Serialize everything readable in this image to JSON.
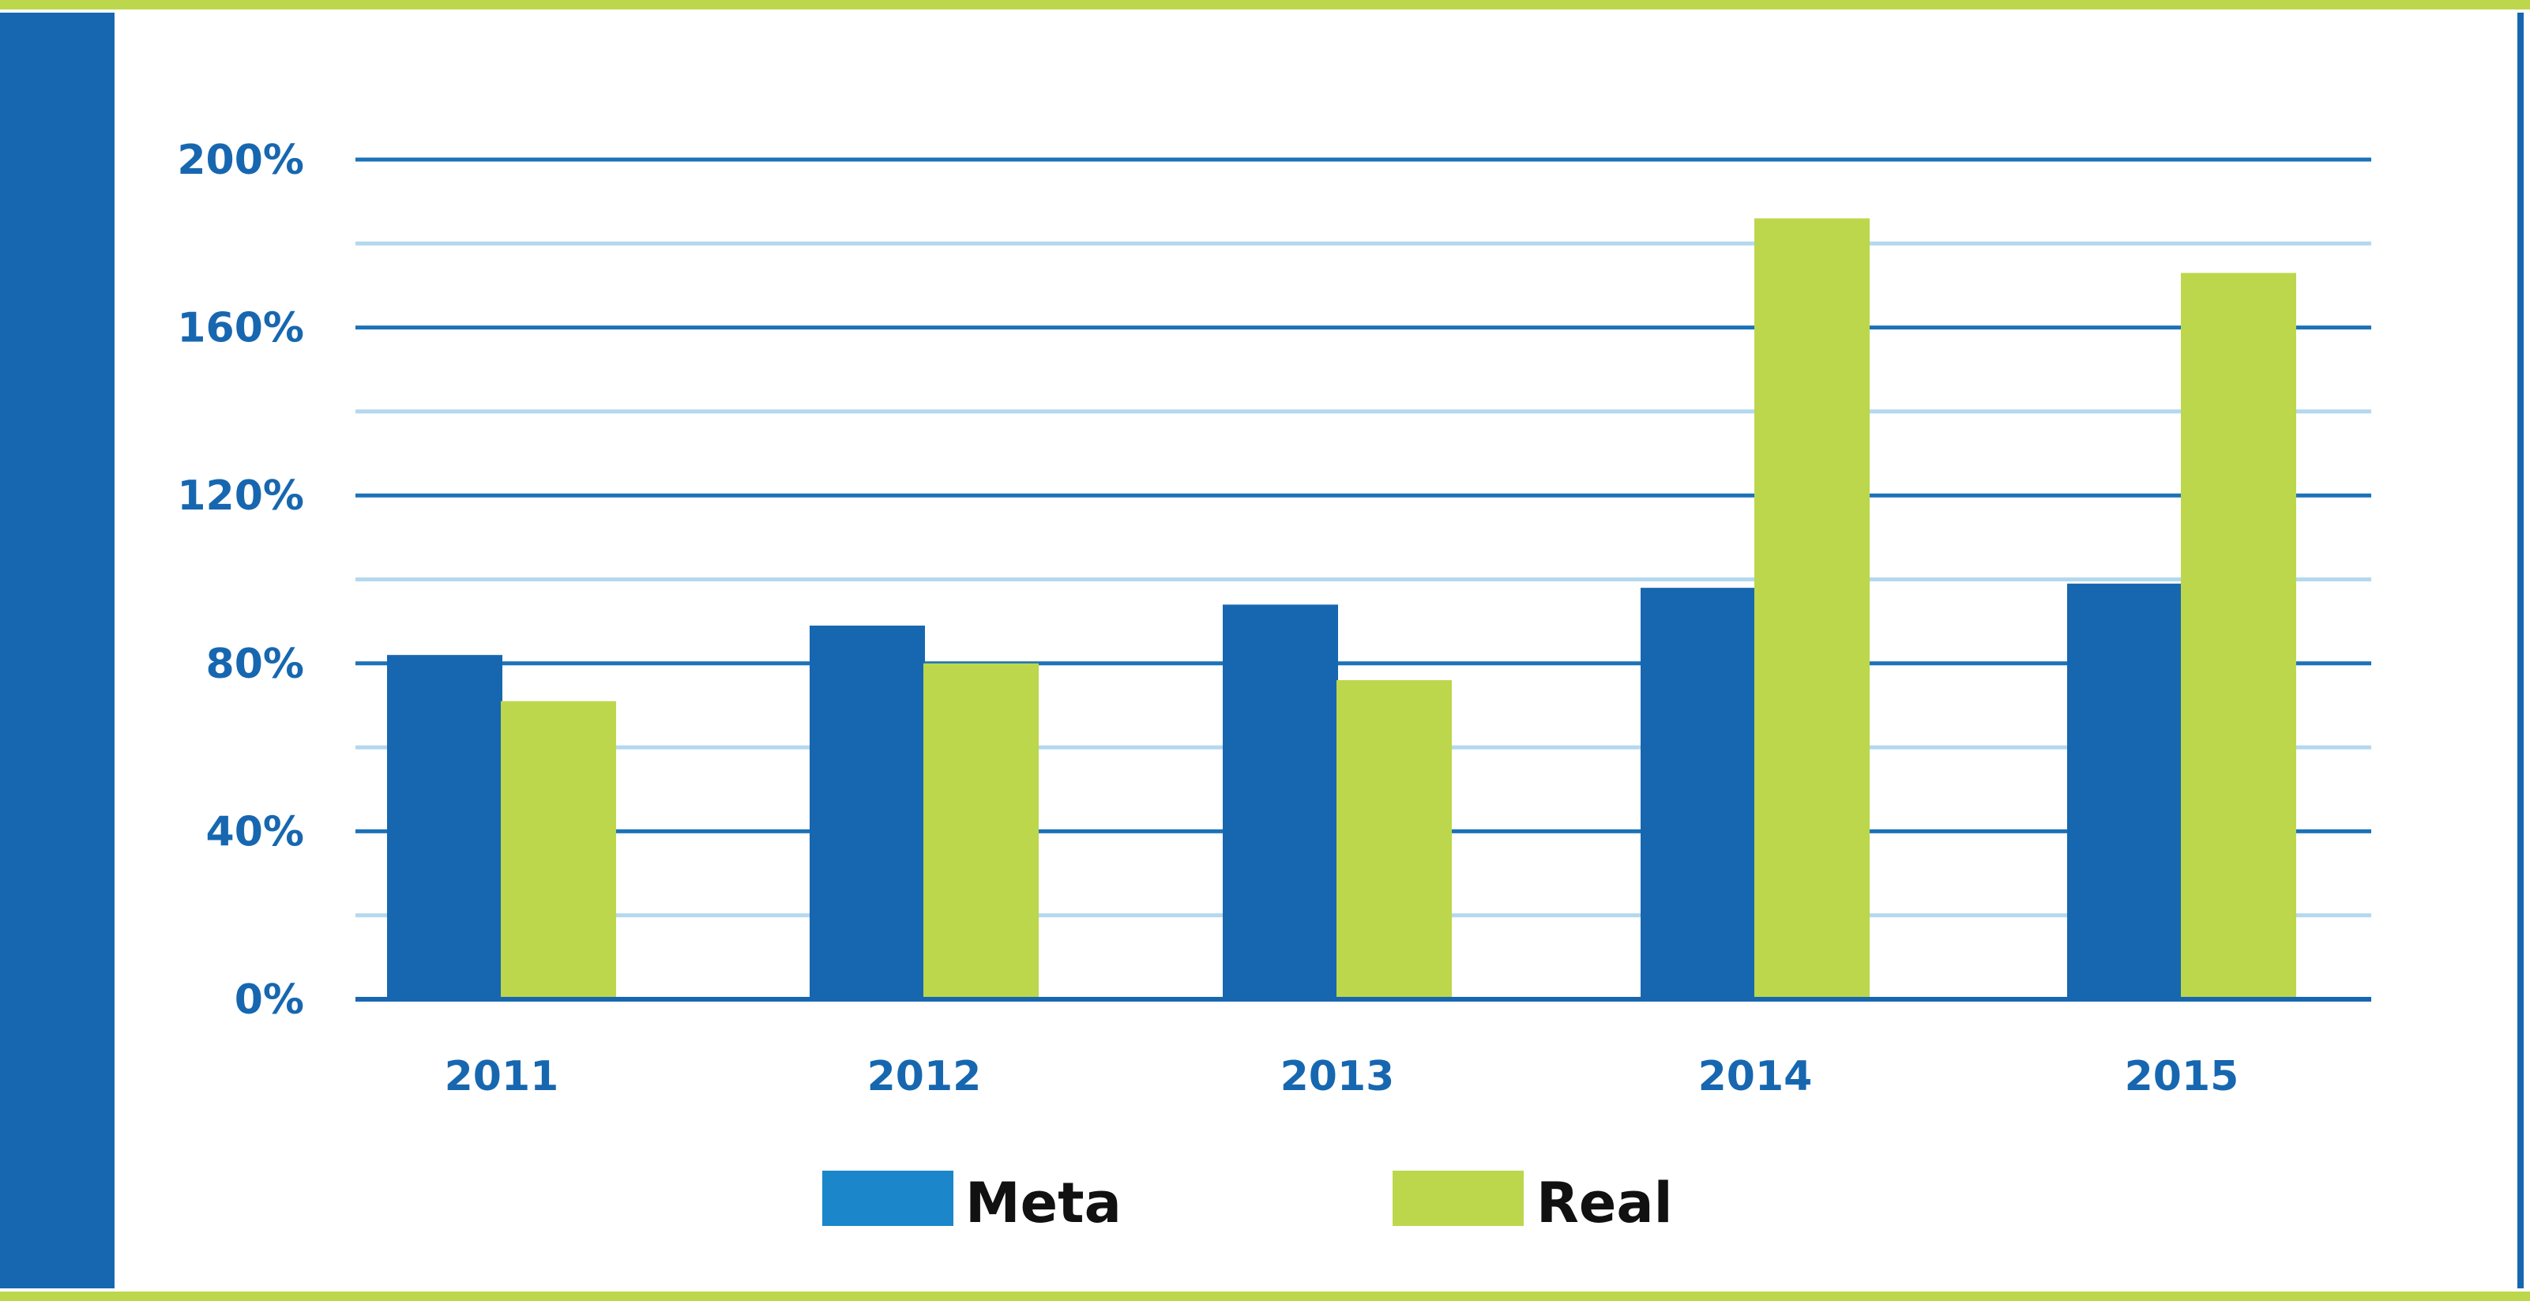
{
  "colors": {
    "frame_green": "#bcd74c",
    "frame_blue": "#1767b0",
    "meta": "#1767b0",
    "meta_legend": "#1b86c9",
    "real": "#bcd74c",
    "axis": "#1767b0",
    "major_grid": "#1b72b8",
    "minor_grid": "#b4d8ee",
    "tick_text": "#1767b0",
    "legend_text": "#111111"
  },
  "chart_data": {
    "type": "bar",
    "categories": [
      "2011",
      "2012",
      "2013",
      "2014",
      "2015"
    ],
    "series": [
      {
        "name": "Meta",
        "values": [
          82,
          89,
          94,
          98,
          99
        ]
      },
      {
        "name": "Real",
        "values": [
          71,
          80,
          76,
          186,
          173
        ]
      }
    ],
    "y_ticks": [
      0,
      40,
      80,
      120,
      160,
      200
    ],
    "y_tick_labels": [
      "0%",
      "40%",
      "80%",
      "120%",
      "160%",
      "200%"
    ],
    "ylim": [
      0,
      200
    ],
    "minor_grid_step": 20,
    "grid": true,
    "legend": {
      "position": "bottom-center",
      "items": [
        "Meta",
        "Real"
      ]
    },
    "title": "",
    "xlabel": "",
    "ylabel": ""
  }
}
